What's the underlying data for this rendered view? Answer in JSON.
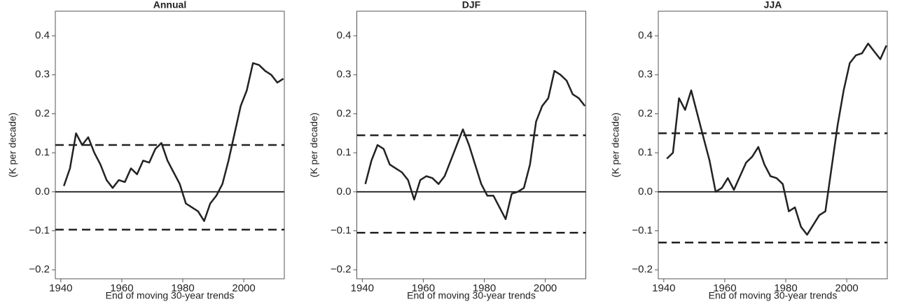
{
  "chart_data": [
    {
      "type": "line",
      "title": "Annual",
      "xlabel": "End of moving 30-year trends",
      "ylabel": "(K per decade)",
      "x": [
        1941,
        1943,
        1945,
        1947,
        1949,
        1951,
        1953,
        1955,
        1957,
        1959,
        1961,
        1963,
        1965,
        1967,
        1969,
        1971,
        1973,
        1975,
        1977,
        1979,
        1981,
        1983,
        1985,
        1987,
        1989,
        1991,
        1993,
        1995,
        1997,
        1999,
        2001,
        2003,
        2005,
        2007,
        2009,
        2011,
        2013
      ],
      "values": [
        0.015,
        0.06,
        0.15,
        0.12,
        0.14,
        0.1,
        0.07,
        0.03,
        0.01,
        0.03,
        0.025,
        0.06,
        0.045,
        0.08,
        0.075,
        0.11,
        0.125,
        0.08,
        0.05,
        0.02,
        -0.03,
        -0.04,
        -0.05,
        -0.075,
        -0.03,
        -0.01,
        0.02,
        0.08,
        0.15,
        0.22,
        0.26,
        0.33,
        0.325,
        0.31,
        0.3,
        0.28,
        0.29
      ],
      "color": "#222222",
      "hlines": [
        {
          "value": 0,
          "style": "solid"
        },
        {
          "value": 0.12,
          "style": "dashed"
        },
        {
          "value": -0.097,
          "style": "dashed"
        }
      ],
      "xlim": [
        1938.2,
        2013.3
      ],
      "ylim": [
        -0.223,
        0.463
      ],
      "xticks": [
        1940,
        1960,
        1980,
        2000
      ],
      "yticks": [
        {
          "value": -0.2,
          "label": "−0.2"
        },
        {
          "value": -0.1,
          "label": "−0.1"
        },
        {
          "value": 0,
          "label": "0.0"
        },
        0.1,
        0.2,
        0.3,
        0.4
      ]
    },
    {
      "type": "line",
      "title": "DJF",
      "xlabel": "End of moving 30-year trends",
      "ylabel": "(K per decade)",
      "x": [
        1941,
        1943,
        1945,
        1947,
        1949,
        1951,
        1953,
        1955,
        1957,
        1959,
        1961,
        1963,
        1965,
        1967,
        1969,
        1971,
        1973,
        1975,
        1977,
        1979,
        1981,
        1983,
        1985,
        1987,
        1989,
        1991,
        1993,
        1995,
        1997,
        1999,
        2001,
        2003,
        2005,
        2007,
        2009,
        2011,
        2013
      ],
      "values": [
        0.02,
        0.08,
        0.12,
        0.11,
        0.07,
        0.06,
        0.05,
        0.03,
        -0.02,
        0.03,
        0.04,
        0.035,
        0.02,
        0.04,
        0.08,
        0.12,
        0.16,
        0.12,
        0.07,
        0.02,
        -0.01,
        -0.01,
        -0.04,
        -0.07,
        -0.005,
        0.0,
        0.01,
        0.07,
        0.18,
        0.22,
        0.24,
        0.31,
        0.3,
        0.285,
        0.25,
        0.24,
        0.22
      ],
      "color": "#222222",
      "hlines": [
        {
          "value": 0,
          "style": "solid"
        },
        {
          "value": 0.145,
          "style": "dashed"
        },
        {
          "value": -0.105,
          "style": "dashed"
        }
      ],
      "xlim": [
        1938.2,
        2013.3
      ],
      "ylim": [
        -0.223,
        0.463
      ],
      "xticks": [
        1940,
        1960,
        1980,
        2000
      ],
      "yticks": [
        {
          "value": -0.2,
          "label": "−0.2"
        },
        {
          "value": -0.1,
          "label": "−0.1"
        },
        {
          "value": 0,
          "label": "0.0"
        },
        0.1,
        0.2,
        0.3,
        0.4
      ]
    },
    {
      "type": "line",
      "title": "JJA",
      "xlabel": "End of moving 30-year trends",
      "ylabel": "(K per decade)",
      "x": [
        1941,
        1943,
        1945,
        1947,
        1949,
        1951,
        1953,
        1955,
        1957,
        1959,
        1961,
        1963,
        1965,
        1967,
        1969,
        1971,
        1973,
        1975,
        1977,
        1979,
        1981,
        1983,
        1985,
        1987,
        1989,
        1991,
        1993,
        1995,
        1997,
        1999,
        2001,
        2003,
        2005,
        2007,
        2009,
        2011,
        2013
      ],
      "values": [
        0.085,
        0.1,
        0.24,
        0.21,
        0.26,
        0.2,
        0.14,
        0.08,
        0.0,
        0.01,
        0.035,
        0.005,
        0.04,
        0.075,
        0.09,
        0.115,
        0.07,
        0.04,
        0.035,
        0.02,
        -0.05,
        -0.04,
        -0.09,
        -0.11,
        -0.085,
        -0.06,
        -0.05,
        0.06,
        0.17,
        0.26,
        0.33,
        0.35,
        0.355,
        0.38,
        0.36,
        0.34,
        0.375
      ],
      "color": "#222222",
      "hlines": [
        {
          "value": 0,
          "style": "solid"
        },
        {
          "value": 0.15,
          "style": "dashed"
        },
        {
          "value": -0.13,
          "style": "dashed"
        }
      ],
      "xlim": [
        1938.2,
        2013.3
      ],
      "ylim": [
        -0.223,
        0.463
      ],
      "xticks": [
        1940,
        1960,
        1980,
        2000
      ],
      "yticks": [
        {
          "value": -0.2,
          "label": "−0.2"
        },
        {
          "value": -0.1,
          "label": "−0.1"
        },
        {
          "value": 0,
          "label": "0.0"
        },
        0.1,
        0.2,
        0.3,
        0.4
      ]
    }
  ]
}
